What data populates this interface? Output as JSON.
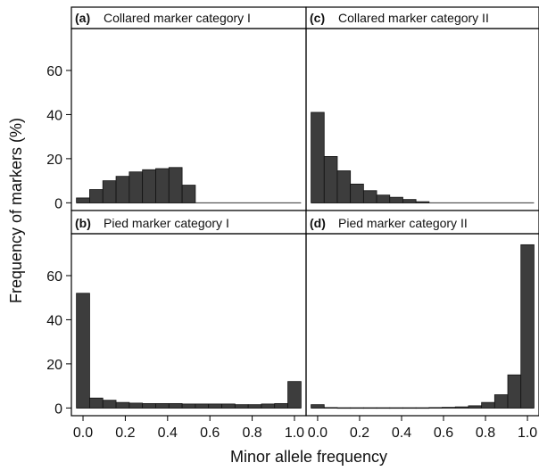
{
  "chart_data": {
    "type": "bar",
    "layout": "2x2 faceted histograms",
    "xlabel": "Minor allele frequency",
    "ylabel": "Frequency of markers (%)",
    "x_ticks": [
      "0.0",
      "0.2",
      "0.4",
      "0.6",
      "0.8",
      "1.0"
    ],
    "x_tick_values": [
      0.0,
      0.2,
      0.4,
      0.6,
      0.8,
      1.0
    ],
    "xlim": [
      -0.055,
      1.055
    ],
    "bin_width": 0.0625,
    "bar_color": "#3d3d3d",
    "panels": [
      {
        "id": "a",
        "letter": "(a)",
        "title": "Collared marker category I",
        "ylim": [
          -3.5,
          79
        ],
        "y_ticks": [
          0,
          20,
          40,
          60
        ],
        "y_tick_labels": [
          "0",
          "20",
          "40",
          "60"
        ],
        "bins": [
          {
            "x": 0.0,
            "y": 2.2
          },
          {
            "x": 0.0625,
            "y": 6.0
          },
          {
            "x": 0.125,
            "y": 10.0
          },
          {
            "x": 0.1875,
            "y": 12.0
          },
          {
            "x": 0.25,
            "y": 14.0
          },
          {
            "x": 0.3125,
            "y": 15.0
          },
          {
            "x": 0.375,
            "y": 15.5
          },
          {
            "x": 0.4375,
            "y": 16.0
          },
          {
            "x": 0.5,
            "y": 8.0
          }
        ]
      },
      {
        "id": "c",
        "letter": "(c)",
        "title": "Collared marker category II",
        "ylim": [
          -3.5,
          79
        ],
        "y_ticks": [
          0,
          20,
          40,
          60
        ],
        "y_tick_labels": [
          "",
          "",
          "",
          ""
        ],
        "bins": [
          {
            "x": 0.0,
            "y": 41.0
          },
          {
            "x": 0.0625,
            "y": 21.0
          },
          {
            "x": 0.125,
            "y": 14.5
          },
          {
            "x": 0.1875,
            "y": 8.5
          },
          {
            "x": 0.25,
            "y": 5.5
          },
          {
            "x": 0.3125,
            "y": 3.5
          },
          {
            "x": 0.375,
            "y": 2.5
          },
          {
            "x": 0.4375,
            "y": 1.5
          },
          {
            "x": 0.5,
            "y": 0.5
          }
        ]
      },
      {
        "id": "b",
        "letter": "(b)",
        "title": "Pied marker category I",
        "ylim": [
          -3.5,
          79
        ],
        "y_ticks": [
          0,
          20,
          40,
          60
        ],
        "y_tick_labels": [
          "0",
          "20",
          "40",
          "60"
        ],
        "bins": [
          {
            "x": 0.0,
            "y": 52.0
          },
          {
            "x": 0.0625,
            "y": 4.5
          },
          {
            "x": 0.125,
            "y": 3.5
          },
          {
            "x": 0.1875,
            "y": 2.5
          },
          {
            "x": 0.25,
            "y": 2.2
          },
          {
            "x": 0.3125,
            "y": 2.0
          },
          {
            "x": 0.375,
            "y": 2.0
          },
          {
            "x": 0.4375,
            "y": 2.0
          },
          {
            "x": 0.5,
            "y": 1.8
          },
          {
            "x": 0.5625,
            "y": 1.8
          },
          {
            "x": 0.625,
            "y": 1.8
          },
          {
            "x": 0.6875,
            "y": 1.8
          },
          {
            "x": 0.75,
            "y": 1.5
          },
          {
            "x": 0.8125,
            "y": 1.5
          },
          {
            "x": 0.875,
            "y": 1.8
          },
          {
            "x": 0.9375,
            "y": 2.0
          },
          {
            "x": 1.0,
            "y": 12.0
          }
        ]
      },
      {
        "id": "d",
        "letter": "(d)",
        "title": "Pied marker category II",
        "ylim": [
          -3.5,
          79
        ],
        "y_ticks": [
          0,
          20,
          40,
          60
        ],
        "y_tick_labels": [
          "",
          "",
          "",
          ""
        ],
        "bins": [
          {
            "x": 0.0,
            "y": 1.5
          },
          {
            "x": 0.0625,
            "y": 0.2
          },
          {
            "x": 0.125,
            "y": 0.1
          },
          {
            "x": 0.1875,
            "y": 0.1
          },
          {
            "x": 0.25,
            "y": 0.1
          },
          {
            "x": 0.3125,
            "y": 0.1
          },
          {
            "x": 0.375,
            "y": 0.1
          },
          {
            "x": 0.4375,
            "y": 0.1
          },
          {
            "x": 0.5,
            "y": 0.1
          },
          {
            "x": 0.5625,
            "y": 0.2
          },
          {
            "x": 0.625,
            "y": 0.3
          },
          {
            "x": 0.6875,
            "y": 0.5
          },
          {
            "x": 0.75,
            "y": 1.0
          },
          {
            "x": 0.8125,
            "y": 2.5
          },
          {
            "x": 0.875,
            "y": 6.0
          },
          {
            "x": 0.9375,
            "y": 15.0
          },
          {
            "x": 1.0,
            "y": 74.0
          }
        ]
      }
    ]
  }
}
